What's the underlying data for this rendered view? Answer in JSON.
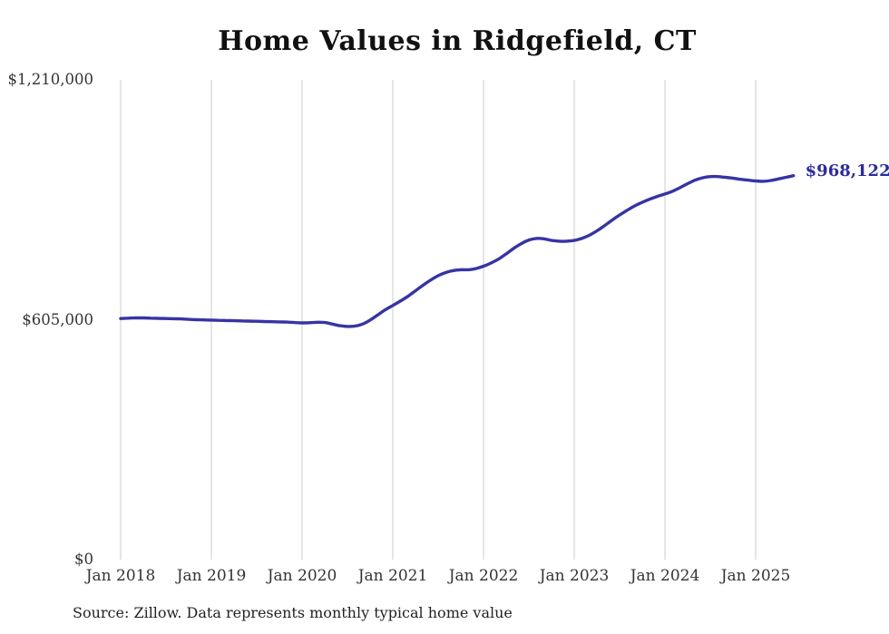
{
  "source_note": "Source: Zillow. Data represents monthly typical home value",
  "colors": {
    "line": "#3634a4",
    "end_label": "#2d2b9e",
    "grid": "#cccccc",
    "tick_text": "#333333",
    "title_text": "#111111"
  },
  "chart_data": {
    "type": "line",
    "title": "Home Values in Ridgefield, CT",
    "xlabel": "",
    "ylabel": "",
    "ylim": [
      0,
      1210000
    ],
    "grid": "vertical-only",
    "x_interval": "monthly",
    "x_start_month": "2018-01",
    "x_end_month": "2025-06",
    "x_tick_labels": [
      "Jan 2018",
      "Jan 2019",
      "Jan 2020",
      "Jan 2021",
      "Jan 2022",
      "Jan 2023",
      "Jan 2024",
      "Jan 2025"
    ],
    "y_ticks": [
      {
        "label": "$0",
        "value": 0
      },
      {
        "label": "$605,000",
        "value": 605000
      },
      {
        "label": "$1,210,000",
        "value": 1210000
      }
    ],
    "end_label": "$968,122",
    "end_value": 968122,
    "series": [
      {
        "name": "Monthly typical home value",
        "values": [
          608000,
          609000,
          609500,
          609500,
          609000,
          608500,
          608000,
          607500,
          607000,
          606000,
          605000,
          604500,
          604000,
          603500,
          603000,
          602500,
          602000,
          601500,
          601000,
          600500,
          600000,
          599500,
          599000,
          598000,
          597000,
          597500,
          598500,
          598000,
          594000,
          590000,
          588000,
          589000,
          594000,
          604000,
          617000,
          630000,
          641000,
          652000,
          664000,
          678000,
          692000,
          705000,
          716000,
          724000,
          729000,
          731000,
          731000,
          734000,
          740000,
          748000,
          758000,
          771000,
          785000,
          797000,
          806000,
          810000,
          809000,
          805000,
          803000,
          803000,
          805000,
          810000,
          818000,
          829000,
          842000,
          856000,
          869000,
          881000,
          892000,
          901000,
          909000,
          916000,
          922000,
          929000,
          938000,
          948000,
          957000,
          963000,
          966000,
          966000,
          964000,
          962000,
          959000,
          957000,
          955000,
          954000,
          956000,
          960000,
          964000,
          968122
        ]
      }
    ]
  }
}
